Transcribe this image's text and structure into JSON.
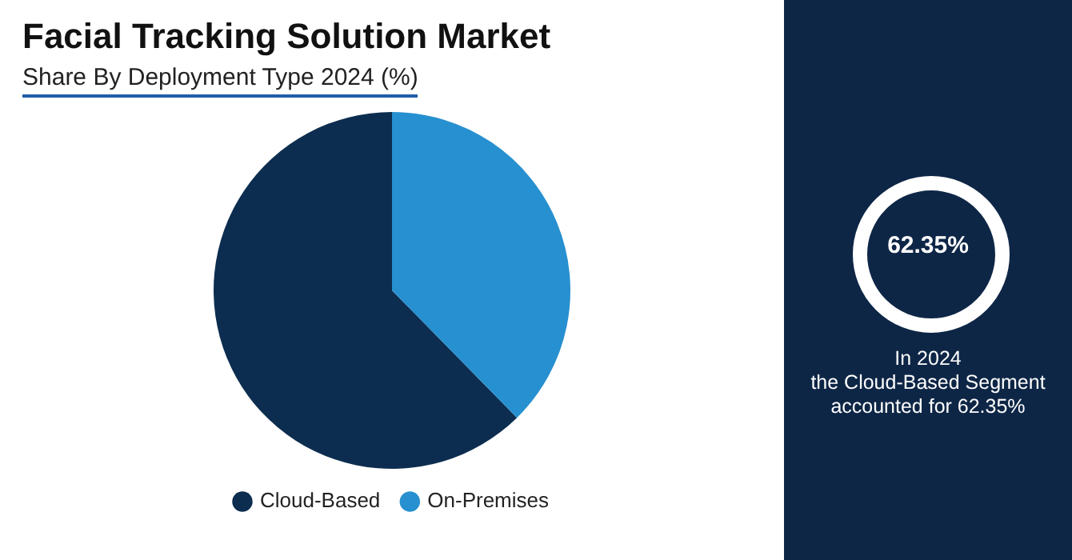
{
  "chart_data": {
    "type": "pie",
    "title": "Facial Tracking Solution Market",
    "subtitle": "Share By Deployment Type 2024 (%)",
    "categories": [
      "Cloud-Based",
      "On-Premises"
    ],
    "values": [
      62.35,
      37.65
    ],
    "colors": [
      "#0c2d4f",
      "#2790d0"
    ],
    "legend": "bottom",
    "annotations": [
      "62.35%",
      "In 2024\nthe Cloud-Based Segment\naccounted for 62.35%"
    ]
  }
}
